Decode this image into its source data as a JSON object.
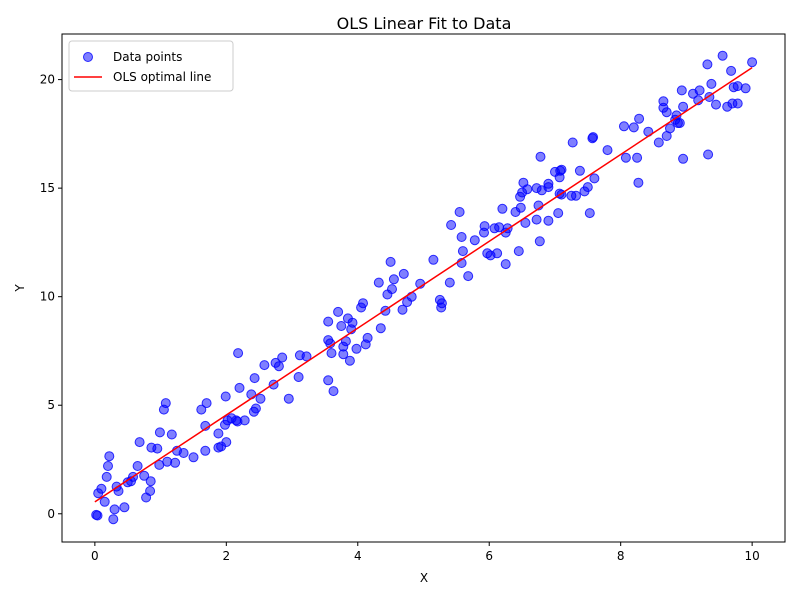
{
  "chart_data": {
    "type": "scatter",
    "title": "OLS Linear Fit to Data",
    "xlabel": "X",
    "ylabel": "Y",
    "xlim": [
      -0.5,
      10.5
    ],
    "ylim": [
      -1.3,
      22.1
    ],
    "xticks": [
      0,
      2,
      4,
      6,
      8,
      10
    ],
    "yticks": [
      0,
      5,
      10,
      15,
      20
    ],
    "xtick_labels": [
      "0",
      "2",
      "4",
      "6",
      "8",
      "10"
    ],
    "ytick_labels": [
      "0",
      "5",
      "10",
      "15",
      "20"
    ],
    "grid": false,
    "legend_position": "top-left",
    "colors": {
      "points": "#0000ff",
      "line": "#ff0000"
    },
    "series": [
      {
        "name": "Data points",
        "kind": "scatter",
        "points": [
          [
            0.02,
            -0.05
          ],
          [
            0.04,
            -0.08
          ],
          [
            0.05,
            0.95
          ],
          [
            0.1,
            1.15
          ],
          [
            0.15,
            0.55
          ],
          [
            0.18,
            1.7
          ],
          [
            0.2,
            2.2
          ],
          [
            0.22,
            2.65
          ],
          [
            0.28,
            -0.25
          ],
          [
            0.3,
            0.2
          ],
          [
            0.33,
            1.25
          ],
          [
            0.36,
            1.05
          ],
          [
            0.45,
            0.3
          ],
          [
            0.5,
            1.45
          ],
          [
            0.55,
            1.5
          ],
          [
            0.58,
            1.7
          ],
          [
            0.65,
            2.2
          ],
          [
            0.68,
            3.3
          ],
          [
            0.75,
            1.75
          ],
          [
            0.78,
            0.75
          ],
          [
            0.84,
            1.05
          ],
          [
            0.85,
            1.5
          ],
          [
            0.86,
            3.05
          ],
          [
            0.95,
            3.0
          ],
          [
            0.98,
            2.25
          ],
          [
            0.99,
            3.75
          ],
          [
            1.05,
            4.8
          ],
          [
            1.08,
            5.1
          ],
          [
            1.1,
            2.4
          ],
          [
            1.17,
            3.65
          ],
          [
            1.22,
            2.35
          ],
          [
            1.25,
            2.9
          ],
          [
            1.35,
            2.8
          ],
          [
            1.5,
            2.6
          ],
          [
            1.62,
            4.8
          ],
          [
            1.68,
            2.9
          ],
          [
            1.68,
            4.05
          ],
          [
            1.7,
            5.1
          ],
          [
            1.88,
            3.05
          ],
          [
            1.88,
            3.7
          ],
          [
            1.92,
            3.1
          ],
          [
            1.98,
            4.1
          ],
          [
            1.99,
            5.4
          ],
          [
            2.0,
            3.3
          ],
          [
            2.02,
            4.3
          ],
          [
            2.08,
            4.4
          ],
          [
            2.15,
            4.3
          ],
          [
            2.17,
            4.25
          ],
          [
            2.18,
            7.4
          ],
          [
            2.2,
            5.8
          ],
          [
            2.28,
            4.3
          ],
          [
            2.38,
            5.5
          ],
          [
            2.42,
            4.7
          ],
          [
            2.43,
            6.25
          ],
          [
            2.45,
            4.85
          ],
          [
            2.52,
            5.3
          ],
          [
            2.58,
            6.85
          ],
          [
            2.72,
            5.95
          ],
          [
            2.75,
            6.95
          ],
          [
            2.8,
            6.8
          ],
          [
            2.85,
            7.2
          ],
          [
            2.95,
            5.3
          ],
          [
            3.1,
            6.3
          ],
          [
            3.12,
            7.3
          ],
          [
            3.22,
            7.25
          ],
          [
            3.55,
            6.15
          ],
          [
            3.55,
            8.0
          ],
          [
            3.55,
            8.85
          ],
          [
            3.58,
            7.85
          ],
          [
            3.6,
            7.4
          ],
          [
            3.63,
            5.65
          ],
          [
            3.7,
            9.3
          ],
          [
            3.75,
            8.65
          ],
          [
            3.78,
            7.35
          ],
          [
            3.78,
            7.7
          ],
          [
            3.82,
            7.95
          ],
          [
            3.85,
            9.0
          ],
          [
            3.88,
            7.05
          ],
          [
            3.9,
            8.5
          ],
          [
            3.92,
            8.8
          ],
          [
            3.98,
            7.6
          ],
          [
            4.05,
            9.5
          ],
          [
            4.08,
            9.7
          ],
          [
            4.12,
            7.8
          ],
          [
            4.15,
            8.1
          ],
          [
            4.32,
            10.65
          ],
          [
            4.35,
            8.55
          ],
          [
            4.42,
            9.35
          ],
          [
            4.45,
            10.1
          ],
          [
            4.5,
            11.6
          ],
          [
            4.52,
            10.35
          ],
          [
            4.55,
            10.8
          ],
          [
            4.68,
            9.4
          ],
          [
            4.7,
            11.05
          ],
          [
            4.75,
            9.75
          ],
          [
            4.82,
            10.0
          ],
          [
            4.95,
            10.6
          ],
          [
            5.15,
            11.7
          ],
          [
            5.25,
            9.85
          ],
          [
            5.27,
            9.5
          ],
          [
            5.28,
            9.7
          ],
          [
            5.4,
            10.65
          ],
          [
            5.42,
            13.3
          ],
          [
            5.55,
            13.9
          ],
          [
            5.58,
            11.55
          ],
          [
            5.58,
            12.75
          ],
          [
            5.6,
            12.1
          ],
          [
            5.68,
            10.95
          ],
          [
            5.78,
            12.6
          ],
          [
            5.92,
            12.95
          ],
          [
            5.93,
            13.25
          ],
          [
            5.97,
            12.0
          ],
          [
            6.02,
            11.9
          ],
          [
            6.08,
            13.15
          ],
          [
            6.12,
            12.0
          ],
          [
            6.15,
            13.2
          ],
          [
            6.2,
            14.05
          ],
          [
            6.25,
            11.5
          ],
          [
            6.25,
            12.95
          ],
          [
            6.28,
            13.15
          ],
          [
            6.4,
            13.9
          ],
          [
            6.45,
            12.1
          ],
          [
            6.47,
            14.6
          ],
          [
            6.48,
            14.1
          ],
          [
            6.5,
            14.8
          ],
          [
            6.52,
            15.25
          ],
          [
            6.55,
            13.4
          ],
          [
            6.58,
            14.95
          ],
          [
            6.72,
            13.55
          ],
          [
            6.72,
            15.0
          ],
          [
            6.75,
            14.2
          ],
          [
            6.77,
            12.55
          ],
          [
            6.78,
            16.45
          ],
          [
            6.8,
            14.9
          ],
          [
            6.9,
            13.5
          ],
          [
            6.9,
            15.2
          ],
          [
            6.9,
            15.05
          ],
          [
            7.0,
            15.75
          ],
          [
            7.05,
            13.85
          ],
          [
            7.07,
            15.5
          ],
          [
            7.07,
            14.75
          ],
          [
            7.08,
            15.8
          ],
          [
            7.1,
            15.85
          ],
          [
            7.1,
            14.7
          ],
          [
            7.25,
            14.65
          ],
          [
            7.27,
            17.1
          ],
          [
            7.32,
            14.65
          ],
          [
            7.38,
            15.8
          ],
          [
            7.45,
            14.85
          ],
          [
            7.5,
            15.05
          ],
          [
            7.53,
            13.85
          ],
          [
            7.57,
            17.3
          ],
          [
            7.58,
            17.35
          ],
          [
            7.6,
            15.45
          ],
          [
            7.8,
            16.75
          ],
          [
            8.05,
            17.85
          ],
          [
            8.08,
            16.4
          ],
          [
            8.2,
            17.8
          ],
          [
            8.25,
            16.4
          ],
          [
            8.27,
            15.25
          ],
          [
            8.28,
            18.2
          ],
          [
            8.42,
            17.6
          ],
          [
            8.58,
            17.1
          ],
          [
            8.65,
            18.7
          ],
          [
            8.65,
            19.0
          ],
          [
            8.7,
            18.5
          ],
          [
            8.7,
            17.4
          ],
          [
            8.75,
            17.75
          ],
          [
            8.83,
            18.15
          ],
          [
            8.85,
            18.35
          ],
          [
            8.87,
            18.0
          ],
          [
            8.9,
            18.0
          ],
          [
            8.93,
            19.5
          ],
          [
            8.95,
            16.35
          ],
          [
            8.95,
            18.75
          ],
          [
            9.1,
            19.35
          ],
          [
            9.18,
            19.05
          ],
          [
            9.2,
            19.5
          ],
          [
            9.32,
            20.7
          ],
          [
            9.33,
            16.55
          ],
          [
            9.35,
            19.2
          ],
          [
            9.38,
            19.8
          ],
          [
            9.45,
            18.85
          ],
          [
            9.55,
            21.1
          ],
          [
            9.62,
            18.75
          ],
          [
            9.68,
            20.4
          ],
          [
            9.7,
            18.9
          ],
          [
            9.72,
            19.65
          ],
          [
            9.78,
            18.9
          ],
          [
            9.78,
            19.7
          ],
          [
            9.9,
            19.6
          ],
          [
            10.0,
            20.8
          ]
        ]
      },
      {
        "name": "OLS optimal line",
        "kind": "line",
        "points": [
          [
            0,
            0.55
          ],
          [
            10,
            20.55
          ]
        ]
      }
    ]
  }
}
